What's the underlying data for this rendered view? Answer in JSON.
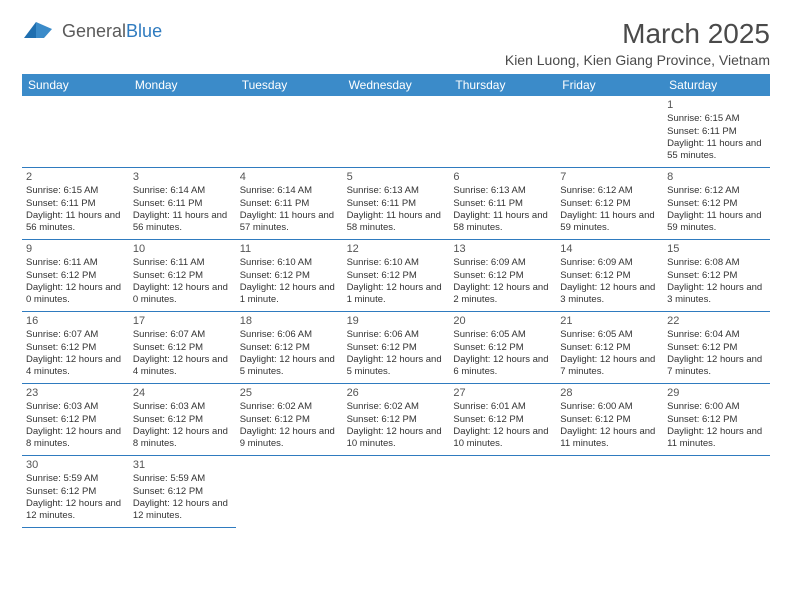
{
  "brand": {
    "part1": "General",
    "part2": "Blue"
  },
  "title": "March 2025",
  "location": "Kien Luong, Kien Giang Province, Vietnam",
  "weekdays": [
    "Sunday",
    "Monday",
    "Tuesday",
    "Wednesday",
    "Thursday",
    "Friday",
    "Saturday"
  ],
  "colors": {
    "header_bg": "#3b8bc9",
    "header_fg": "#ffffff",
    "border": "#2f7bbf",
    "text": "#333333",
    "title": "#4a4a4a"
  },
  "grid": {
    "rows": 6,
    "cols": 7,
    "first_day_index": 6,
    "total_days": 31
  },
  "days": [
    {
      "n": 1,
      "sr": "6:15 AM",
      "ss": "6:11 PM",
      "dl": "11 hours and 55 minutes."
    },
    {
      "n": 2,
      "sr": "6:15 AM",
      "ss": "6:11 PM",
      "dl": "11 hours and 56 minutes."
    },
    {
      "n": 3,
      "sr": "6:14 AM",
      "ss": "6:11 PM",
      "dl": "11 hours and 56 minutes."
    },
    {
      "n": 4,
      "sr": "6:14 AM",
      "ss": "6:11 PM",
      "dl": "11 hours and 57 minutes."
    },
    {
      "n": 5,
      "sr": "6:13 AM",
      "ss": "6:11 PM",
      "dl": "11 hours and 58 minutes."
    },
    {
      "n": 6,
      "sr": "6:13 AM",
      "ss": "6:11 PM",
      "dl": "11 hours and 58 minutes."
    },
    {
      "n": 7,
      "sr": "6:12 AM",
      "ss": "6:12 PM",
      "dl": "11 hours and 59 minutes."
    },
    {
      "n": 8,
      "sr": "6:12 AM",
      "ss": "6:12 PM",
      "dl": "11 hours and 59 minutes."
    },
    {
      "n": 9,
      "sr": "6:11 AM",
      "ss": "6:12 PM",
      "dl": "12 hours and 0 minutes."
    },
    {
      "n": 10,
      "sr": "6:11 AM",
      "ss": "6:12 PM",
      "dl": "12 hours and 0 minutes."
    },
    {
      "n": 11,
      "sr": "6:10 AM",
      "ss": "6:12 PM",
      "dl": "12 hours and 1 minute."
    },
    {
      "n": 12,
      "sr": "6:10 AM",
      "ss": "6:12 PM",
      "dl": "12 hours and 1 minute."
    },
    {
      "n": 13,
      "sr": "6:09 AM",
      "ss": "6:12 PM",
      "dl": "12 hours and 2 minutes."
    },
    {
      "n": 14,
      "sr": "6:09 AM",
      "ss": "6:12 PM",
      "dl": "12 hours and 3 minutes."
    },
    {
      "n": 15,
      "sr": "6:08 AM",
      "ss": "6:12 PM",
      "dl": "12 hours and 3 minutes."
    },
    {
      "n": 16,
      "sr": "6:07 AM",
      "ss": "6:12 PM",
      "dl": "12 hours and 4 minutes."
    },
    {
      "n": 17,
      "sr": "6:07 AM",
      "ss": "6:12 PM",
      "dl": "12 hours and 4 minutes."
    },
    {
      "n": 18,
      "sr": "6:06 AM",
      "ss": "6:12 PM",
      "dl": "12 hours and 5 minutes."
    },
    {
      "n": 19,
      "sr": "6:06 AM",
      "ss": "6:12 PM",
      "dl": "12 hours and 5 minutes."
    },
    {
      "n": 20,
      "sr": "6:05 AM",
      "ss": "6:12 PM",
      "dl": "12 hours and 6 minutes."
    },
    {
      "n": 21,
      "sr": "6:05 AM",
      "ss": "6:12 PM",
      "dl": "12 hours and 7 minutes."
    },
    {
      "n": 22,
      "sr": "6:04 AM",
      "ss": "6:12 PM",
      "dl": "12 hours and 7 minutes."
    },
    {
      "n": 23,
      "sr": "6:03 AM",
      "ss": "6:12 PM",
      "dl": "12 hours and 8 minutes."
    },
    {
      "n": 24,
      "sr": "6:03 AM",
      "ss": "6:12 PM",
      "dl": "12 hours and 8 minutes."
    },
    {
      "n": 25,
      "sr": "6:02 AM",
      "ss": "6:12 PM",
      "dl": "12 hours and 9 minutes."
    },
    {
      "n": 26,
      "sr": "6:02 AM",
      "ss": "6:12 PM",
      "dl": "12 hours and 10 minutes."
    },
    {
      "n": 27,
      "sr": "6:01 AM",
      "ss": "6:12 PM",
      "dl": "12 hours and 10 minutes."
    },
    {
      "n": 28,
      "sr": "6:00 AM",
      "ss": "6:12 PM",
      "dl": "12 hours and 11 minutes."
    },
    {
      "n": 29,
      "sr": "6:00 AM",
      "ss": "6:12 PM",
      "dl": "12 hours and 11 minutes."
    },
    {
      "n": 30,
      "sr": "5:59 AM",
      "ss": "6:12 PM",
      "dl": "12 hours and 12 minutes."
    },
    {
      "n": 31,
      "sr": "5:59 AM",
      "ss": "6:12 PM",
      "dl": "12 hours and 12 minutes."
    }
  ],
  "labels": {
    "sunrise": "Sunrise:",
    "sunset": "Sunset:",
    "daylight": "Daylight:"
  }
}
